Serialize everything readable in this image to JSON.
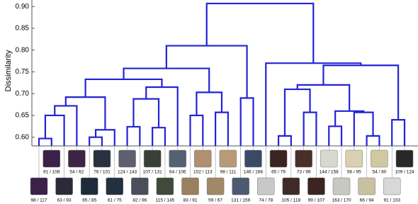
{
  "chart_data": {
    "type": "dendrogram",
    "ylabel": "Dissimilarity",
    "ylim": [
      0.58,
      0.915
    ],
    "yticks": [
      {
        "value": 0.6,
        "label": "0.60"
      },
      0.65,
      {
        "value": 0.7,
        "label": "0.70"
      },
      0.75,
      {
        "value": 0.8,
        "label": "0.80"
      },
      0.85,
      {
        "value": 0.9,
        "label": "0.90"
      }
    ],
    "color": "#2323d6",
    "tree": {
      "height": 0.907,
      "children": [
        {
          "height": 0.81,
          "children": [
            {
              "height": 0.758,
              "children": [
                {
                  "height": 0.733,
                  "children": [
                    {
                      "height": 0.692,
                      "children": [
                        {
                          "height": 0.672,
                          "children": [
                            {
                              "height": 0.65,
                              "children": [
                                {
                                  "height": 0.597,
                                  "children": [
                                    {
                                      "label": "98 / 117"
                                    },
                                    {
                                      "label": "91 / 108"
                                    }
                                  ]
                                },
                                {
                                  "label": "63 / 93"
                                }
                              ]
                            },
                            {
                              "label": "54 / 62"
                            }
                          ]
                        },
                        {
                          "height": 0.617,
                          "children": [
                            {
                              "height": 0.6,
                              "children": [
                                {
                                  "label": "65 / 85"
                                },
                                {
                                  "label": "76 / 101"
                                }
                              ]
                            },
                            {
                              "label": "61 / 75"
                            }
                          ]
                        }
                      ]
                    },
                    {
                      "height": 0.715,
                      "children": [
                        {
                          "height": 0.688,
                          "children": [
                            {
                              "height": 0.624,
                              "children": [
                                {
                                  "label": "124 / 143"
                                },
                                {
                                  "label": "82 / 96"
                                }
                              ]
                            },
                            {
                              "height": 0.622,
                              "children": [
                                {
                                  "label": "107 / 131"
                                },
                                {
                                  "label": "115 / 145"
                                }
                              ]
                            }
                          ]
                        },
                        {
                          "label": "64 / 106"
                        }
                      ]
                    }
                  ]
                },
                {
                  "height": 0.703,
                  "children": [
                    {
                      "height": 0.65,
                      "children": [
                        {
                          "label": "83 / 91"
                        },
                        {
                          "label": "102 / 113"
                        }
                      ]
                    },
                    {
                      "height": 0.657,
                      "children": [
                        {
                          "label": "59 / 67"
                        },
                        {
                          "label": "98 / 111"
                        }
                      ]
                    }
                  ]
                }
              ]
            },
            {
              "height": 0.69,
              "children": [
                {
                  "label": "131 / 159"
                },
                {
                  "label": "146 / 168"
                }
              ]
            }
          ]
        },
        {
          "height": 0.77,
          "children": [
            {
              "label": "74 / 78"
            },
            {
              "height": 0.765,
              "children": [
                {
                  "height": 0.72,
                  "children": [
                    {
                      "height": 0.71,
                      "children": [
                        {
                          "height": 0.603,
                          "children": [
                            {
                              "label": "65 / 79"
                            },
                            {
                              "label": "105 / 118"
                            }
                          ]
                        },
                        {
                          "height": 0.657,
                          "children": [
                            {
                              "label": "73 / 96"
                            },
                            {
                              "label": "99 / 107"
                            }
                          ]
                        }
                      ]
                    },
                    {
                      "height": 0.66,
                      "children": [
                        {
                          "height": 0.625,
                          "children": [
                            {
                              "label": "144 / 158"
                            },
                            {
                              "label": "163 / 170"
                            }
                          ]
                        },
                        {
                          "height": 0.657,
                          "children": [
                            {
                              "label": "56 / 95"
                            },
                            {
                              "height": 0.603,
                              "children": [
                                {
                                  "label": "66 / 94"
                                },
                                {
                                  "label": "54 / 80"
                                }
                              ]
                            }
                          ]
                        }
                      ]
                    }
                  ]
                },
                {
                  "height": 0.64,
                  "children": [
                    {
                      "label": "91 / 103"
                    },
                    {
                      "label": "109 / 124"
                    }
                  ]
                }
              ]
            }
          ]
        }
      ]
    }
  }
}
